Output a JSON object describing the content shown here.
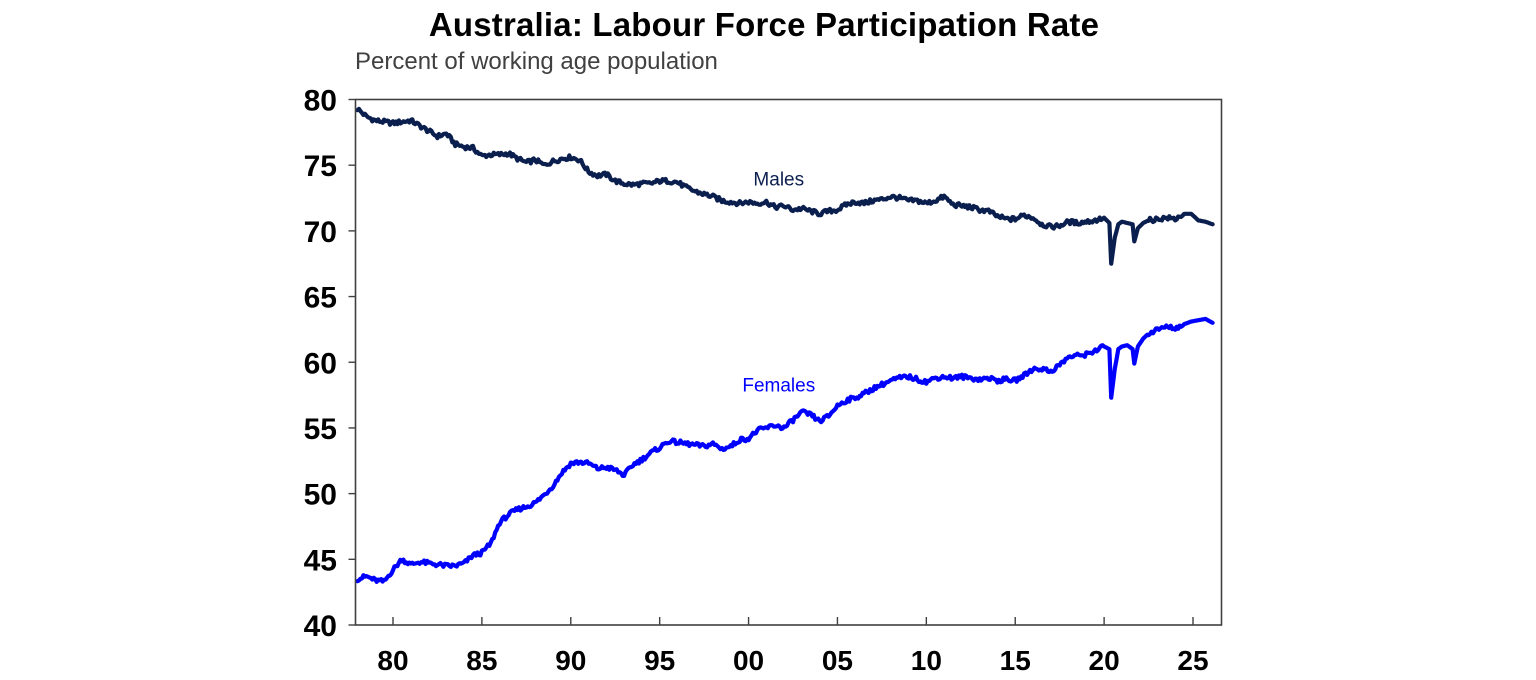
{
  "chart_data": {
    "type": "line",
    "title": "Australia: Labour Force Participation Rate",
    "subtitle": "Percent of working age population",
    "xlabel": "",
    "ylabel": "",
    "ylim": [
      40,
      80
    ],
    "xlim": [
      1978.0,
      2026.6
    ],
    "yticks": [
      40,
      45,
      50,
      55,
      60,
      65,
      70,
      75,
      80
    ],
    "xticks": [
      1980,
      1985,
      1990,
      1995,
      2000,
      2005,
      2010,
      2015,
      2020,
      2025
    ],
    "xtick_labels": [
      "80",
      "85",
      "90",
      "95",
      "00",
      "05",
      "10",
      "15",
      "20",
      "25"
    ],
    "grid": false,
    "legend": "inline labels",
    "series": [
      {
        "name": "Males",
        "color": "#0b1f4f",
        "label_position": {
          "x": 2001.7,
          "y": 74.0
        },
        "x": [
          1978.0,
          1978.5,
          1979.0,
          1979.5,
          1980.0,
          1980.5,
          1981.0,
          1981.5,
          1982.0,
          1982.5,
          1983.0,
          1983.5,
          1984.0,
          1984.5,
          1985.0,
          1985.5,
          1986.0,
          1986.5,
          1987.0,
          1987.5,
          1988.0,
          1988.5,
          1989.0,
          1989.5,
          1990.0,
          1990.5,
          1991.0,
          1991.5,
          1992.0,
          1992.5,
          1993.0,
          1993.5,
          1994.0,
          1994.5,
          1995.0,
          1995.5,
          1996.0,
          1996.5,
          1997.0,
          1997.5,
          1998.0,
          1998.5,
          1999.0,
          1999.5,
          2000.0,
          2000.5,
          2001.0,
          2001.5,
          2002.0,
          2002.5,
          2003.0,
          2003.5,
          2004.0,
          2004.5,
          2005.0,
          2005.5,
          2006.0,
          2006.5,
          2007.0,
          2007.5,
          2008.0,
          2008.5,
          2009.0,
          2009.5,
          2010.0,
          2010.5,
          2011.0,
          2011.5,
          2012.0,
          2012.5,
          2013.0,
          2013.5,
          2014.0,
          2014.5,
          2015.0,
          2015.5,
          2016.0,
          2016.5,
          2017.0,
          2017.5,
          2018.0,
          2018.5,
          2019.0,
          2019.5,
          2020.0,
          2020.3,
          2020.4,
          2020.6,
          2020.8,
          2021.0,
          2021.3,
          2021.6,
          2021.7,
          2021.9,
          2022.2,
          2022.5,
          2023.0,
          2023.5,
          2024.0,
          2024.5,
          2024.9,
          2025.3,
          2025.7,
          2026.1
        ],
        "values": [
          79.3,
          78.7,
          78.4,
          78.3,
          78.2,
          78.3,
          78.4,
          78.0,
          77.6,
          77.2,
          77.4,
          76.6,
          76.4,
          76.3,
          75.7,
          75.8,
          75.8,
          75.9,
          75.5,
          75.2,
          75.4,
          75.0,
          75.3,
          75.5,
          75.6,
          75.4,
          74.5,
          74.2,
          74.3,
          73.8,
          73.6,
          73.5,
          73.6,
          73.6,
          73.8,
          73.8,
          73.7,
          73.3,
          73.0,
          72.8,
          72.6,
          72.3,
          72.2,
          72.1,
          72.2,
          72.1,
          72.2,
          71.8,
          71.9,
          71.6,
          71.7,
          71.5,
          71.3,
          71.5,
          71.6,
          72.0,
          72.2,
          72.1,
          72.3,
          72.4,
          72.6,
          72.5,
          72.3,
          72.3,
          72.1,
          72.3,
          72.6,
          72.0,
          71.9,
          71.8,
          71.6,
          71.5,
          71.1,
          70.9,
          70.9,
          71.2,
          71.0,
          70.5,
          70.3,
          70.4,
          70.7,
          70.6,
          70.7,
          70.8,
          71.0,
          70.6,
          67.5,
          69.5,
          70.5,
          70.7,
          70.6,
          70.5,
          69.2,
          70.2,
          70.6,
          70.8,
          70.9,
          71.0,
          70.9,
          71.3,
          71.3,
          70.8,
          70.7,
          70.5
        ]
      },
      {
        "name": "Females",
        "color": "#0000ff",
        "label_position": {
          "x": 2001.7,
          "y": 58.3
        },
        "x": [
          1978.0,
          1978.5,
          1979.0,
          1979.5,
          1980.0,
          1980.5,
          1981.0,
          1981.5,
          1982.0,
          1982.5,
          1983.0,
          1983.5,
          1984.0,
          1984.5,
          1985.0,
          1985.5,
          1986.0,
          1986.5,
          1987.0,
          1987.5,
          1988.0,
          1988.5,
          1989.0,
          1989.5,
          1990.0,
          1990.5,
          1991.0,
          1991.5,
          1992.0,
          1992.5,
          1993.0,
          1993.5,
          1994.0,
          1994.5,
          1995.0,
          1995.5,
          1996.0,
          1996.5,
          1997.0,
          1997.5,
          1998.0,
          1998.5,
          1999.0,
          1999.5,
          2000.0,
          2000.5,
          2001.0,
          2001.5,
          2002.0,
          2002.5,
          2003.0,
          2003.5,
          2004.0,
          2004.5,
          2005.0,
          2005.5,
          2006.0,
          2006.5,
          2007.0,
          2007.5,
          2008.0,
          2008.5,
          2009.0,
          2009.5,
          2010.0,
          2010.5,
          2011.0,
          2011.5,
          2012.0,
          2012.5,
          2013.0,
          2013.5,
          2014.0,
          2014.5,
          2015.0,
          2015.5,
          2016.0,
          2016.5,
          2017.0,
          2017.5,
          2018.0,
          2018.5,
          2019.0,
          2019.5,
          2020.0,
          2020.3,
          2020.4,
          2020.6,
          2020.8,
          2021.0,
          2021.3,
          2021.6,
          2021.7,
          2021.9,
          2022.2,
          2022.5,
          2023.0,
          2023.5,
          2024.0,
          2024.5,
          2024.9,
          2025.3,
          2025.7,
          2026.1
        ],
        "values": [
          43.5,
          43.7,
          43.4,
          43.3,
          44.2,
          45.0,
          44.6,
          44.8,
          44.7,
          44.6,
          44.5,
          44.5,
          44.7,
          45.3,
          45.5,
          46.2,
          47.8,
          48.4,
          48.8,
          49.0,
          49.3,
          49.9,
          50.6,
          51.6,
          52.3,
          52.4,
          52.3,
          51.9,
          52.0,
          51.8,
          51.4,
          52.2,
          52.6,
          53.1,
          53.5,
          54.0,
          53.9,
          53.8,
          53.7,
          53.6,
          53.8,
          53.4,
          53.6,
          54.1,
          54.2,
          54.8,
          55.0,
          55.2,
          55.0,
          55.6,
          56.2,
          56.0,
          55.5,
          55.9,
          56.7,
          57.1,
          57.3,
          57.6,
          58.0,
          58.3,
          58.6,
          58.8,
          58.9,
          58.7,
          58.5,
          58.8,
          58.9,
          58.8,
          58.9,
          58.8,
          58.7,
          58.8,
          58.6,
          58.7,
          58.6,
          59.0,
          59.5,
          59.5,
          59.3,
          59.8,
          60.4,
          60.5,
          60.6,
          60.9,
          61.2,
          61.0,
          57.3,
          59.5,
          61.0,
          61.2,
          61.3,
          61.0,
          59.9,
          61.2,
          61.8,
          62.2,
          62.5,
          62.7,
          62.6,
          62.9,
          63.1,
          63.2,
          63.3,
          63.0
        ]
      }
    ]
  },
  "header": {
    "title": "Australia: Labour Force Participation Rate",
    "subtitle": "Percent of working age population"
  },
  "labels": {
    "males": "Males",
    "females": "Females"
  }
}
